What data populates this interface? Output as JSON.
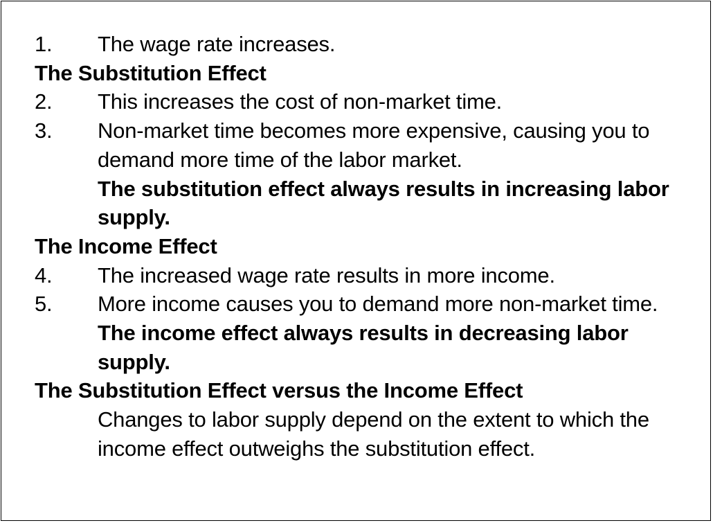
{
  "steps": [
    {
      "number": "1.",
      "text": "The wage rate increases."
    },
    {
      "number": "2.",
      "text": "This increases the cost of non-market time."
    },
    {
      "number": "3.",
      "text": "Non-market time becomes more expensive, causing you to demand more time of the labor market."
    },
    {
      "number": "4.",
      "text": "The increased wage rate results in more income."
    },
    {
      "number": "5.",
      "text": "More income causes you to demand more non-market time."
    }
  ],
  "sections": {
    "substitution": {
      "heading": "The Substitution Effect",
      "conclusion": "The substitution effect always results in increasing labor supply."
    },
    "income": {
      "heading": "The Income Effect",
      "conclusion": "The income effect always results in decreasing labor supply."
    },
    "comparison": {
      "heading": "The Substitution Effect versus the Income Effect",
      "text": "Changes to labor supply depend on the extent to which the income effect outweighs the substitution effect."
    }
  }
}
